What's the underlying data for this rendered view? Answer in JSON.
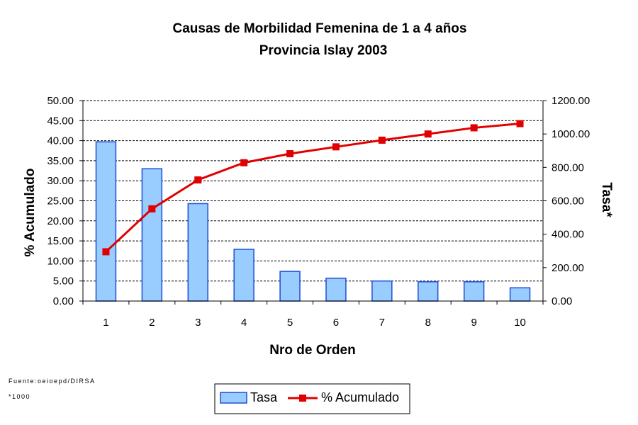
{
  "chart_data": {
    "type": "bar",
    "title": "Causas de Morbilidad Femenina de 1 a 4 años",
    "subtitle": "Provincia Islay 2003",
    "xlabel": "Nro de Orden",
    "ylabel_left": "% Acumulado",
    "ylabel_right": "Tasa*",
    "categories": [
      "1",
      "2",
      "3",
      "4",
      "5",
      "6",
      "7",
      "8",
      "9",
      "10"
    ],
    "ylim_left": [
      0,
      50
    ],
    "yticks_left": [
      "0.00",
      "5.00",
      "10.00",
      "15.00",
      "20.00",
      "25.00",
      "30.00",
      "35.00",
      "40.00",
      "45.00",
      "50.00"
    ],
    "ylim_right": [
      0,
      1200
    ],
    "yticks_right": [
      "0.00",
      "200.00",
      "400.00",
      "600.00",
      "800.00",
      "1000.00",
      "1200.00"
    ],
    "grid": true,
    "series": [
      {
        "name": "Tasa",
        "type": "bar",
        "axis": "left",
        "color": "#99CCFF",
        "values": [
          39.7,
          33.0,
          24.3,
          12.9,
          7.4,
          5.7,
          5.0,
          4.8,
          4.8,
          3.3
        ]
      },
      {
        "name": "% Acumulado",
        "type": "line",
        "axis": "right",
        "color": "#E00000",
        "values": [
          295,
          552,
          725,
          828,
          882,
          923,
          963,
          1000,
          1037,
          1062
        ]
      }
    ],
    "legend_position": "bottom-center",
    "source_note": "Fuente:oeioepd/DIRSA",
    "footnote": "*1000"
  }
}
